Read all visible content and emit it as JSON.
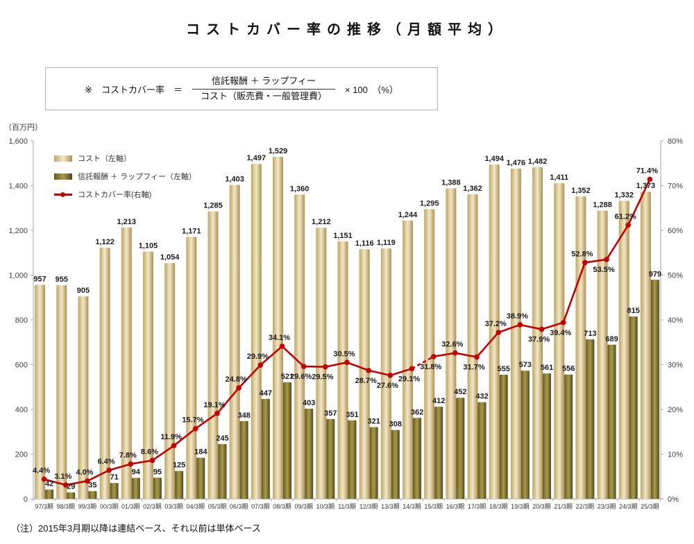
{
  "title": "コストカバー率の推移（月額平均）",
  "formula": {
    "prefix": "※　コストカバー率　＝",
    "numerator": "信託報酬 ＋ ラップフィー",
    "denominator": "コスト（販売費・一般管理費）",
    "suffix": "× 100　（%）"
  },
  "unit_label": "（百万円）",
  "note": "（注）2015年3月期以降は連結ベース、それ以前は単体ベース",
  "legend": [
    {
      "label": "コスト（左軸）",
      "swatch": "bar-light"
    },
    {
      "label": "信託報酬 ＋ ラップフィー（左軸）",
      "swatch": "bar-dark"
    },
    {
      "label": "コストカバー率(右軸)",
      "swatch": "line"
    }
  ],
  "colors": {
    "bar_light_edge": "#bfa76e",
    "bar_light_mid": "#f1e8cb",
    "bar_light_far": "#a8905a",
    "bar_dark_edge": "#5f5523",
    "bar_dark_mid": "#a89a4a",
    "bar_dark_far": "#4f471e",
    "line": "#c00000",
    "axis": "#a6a6a6",
    "label": "#1a1a1a"
  },
  "chart_data": {
    "type": "bar",
    "categories": [
      "97/3期",
      "98/3期",
      "99/3期",
      "00/3期",
      "01/3期",
      "02/3期",
      "03/3期",
      "04/3期",
      "05/3期",
      "06/3期",
      "07/3期",
      "08/3期",
      "09/3期",
      "10/3期",
      "11/3期",
      "12/3期",
      "13/3期",
      "14/3期",
      "15/3期",
      "16/3期",
      "17/3期",
      "18/3期",
      "19/3期",
      "20/3期",
      "21/3期",
      "22/3期",
      "23/3期",
      "24/3期",
      "25/3期"
    ],
    "series": [
      {
        "name": "コスト（左軸）",
        "type": "bar",
        "axis": "left",
        "values": [
          957,
          955,
          905,
          1122,
          1213,
          1105,
          1054,
          1171,
          1285,
          1403,
          1497,
          1529,
          1360,
          1212,
          1151,
          1116,
          1119,
          1244,
          1295,
          1388,
          1362,
          1494,
          1476,
          1482,
          1411,
          1352,
          1288,
          1332,
          1373
        ]
      },
      {
        "name": "信託報酬 ＋ ラップフィー（左軸）",
        "type": "bar",
        "axis": "left",
        "values": [
          42,
          29,
          35,
          71,
          94,
          95,
          125,
          184,
          245,
          348,
          447,
          521,
          403,
          357,
          351,
          321,
          308,
          362,
          412,
          452,
          432,
          555,
          573,
          561,
          556,
          713,
          689,
          815,
          979
        ]
      },
      {
        "name": "コストカバー率(右軸)",
        "type": "line",
        "axis": "right",
        "values": [
          4.4,
          3.1,
          4.0,
          6.4,
          7.8,
          8.6,
          11.9,
          15.7,
          19.1,
          24.8,
          29.9,
          34.1,
          29.6,
          29.5,
          30.5,
          28.7,
          27.6,
          29.1,
          31.8,
          32.6,
          31.7,
          37.2,
          38.9,
          37.9,
          39.4,
          52.8,
          53.5,
          61.2,
          71.4
        ],
        "dashed_segment": {
          "from": "14/3期",
          "to": "15/3期"
        }
      }
    ],
    "left_axis": {
      "min": 0,
      "max": 1600,
      "step": 200,
      "unit": "百万円",
      "ticks": [
        "0",
        "200",
        "400",
        "600",
        "800",
        "1,000",
        "1,200",
        "1,400",
        "1,600"
      ]
    },
    "right_axis": {
      "min": 0,
      "max": 80,
      "step": 10,
      "unit": "%",
      "ticks": [
        "0%",
        "10%",
        "20%",
        "30%",
        "40%",
        "50%",
        "60%",
        "70%",
        "80%"
      ]
    },
    "grid": false,
    "legend_position": "top-left-inside",
    "pct_label_position": [
      "above",
      "above",
      "above",
      "above",
      "above",
      "above",
      "above",
      "above",
      "above",
      "above",
      "above",
      "above",
      "below",
      "below",
      "above",
      "below",
      "below",
      "below",
      "below",
      "above",
      "below",
      "above",
      "above",
      "below",
      "below",
      "above",
      "below",
      "above",
      "above"
    ]
  }
}
